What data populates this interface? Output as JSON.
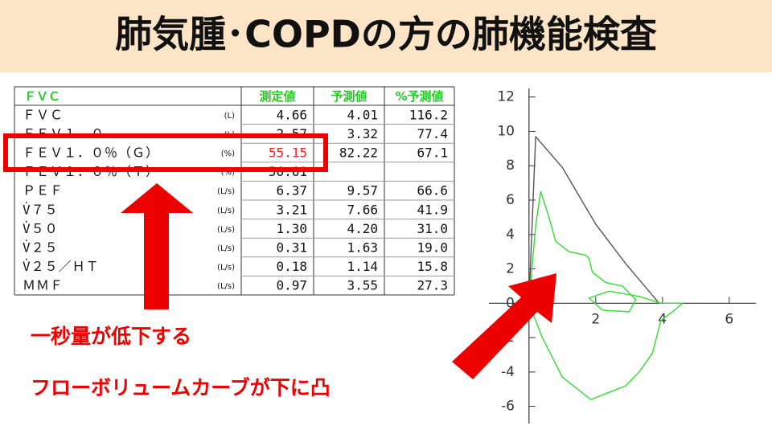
{
  "title": "肺気腫･COPDの方の肺機能検査",
  "table": {
    "header": [
      "ＦＶＣ",
      "測定値",
      "予測値",
      "%予測値"
    ],
    "rows": [
      {
        "label": "ＦＶＣ",
        "unit": "(L)",
        "measured": "4.66",
        "predicted": "4.01",
        "percent": "116.2"
      },
      {
        "label": "ＦＥＶ１．０",
        "unit": "(L)",
        "measured": "2.57",
        "predicted": "3.32",
        "percent": "77.4"
      },
      {
        "label": "ＦＥＶ１．０％（Ｇ）",
        "unit": "(%)",
        "measured": "55.15",
        "predicted": "82.22",
        "percent": "67.1"
      },
      {
        "label": "ＦＥＶ１．０％（Ｔ）",
        "unit": "(%)",
        "measured": "56.61"
      },
      {
        "label": "ＰＥＦ",
        "unit": "(L/s)",
        "measured": "6.37",
        "predicted": "9.57",
        "percent": "66.6"
      },
      {
        "label": "V̇７５",
        "unit": "(L/s)",
        "measured": "3.21",
        "predicted": "7.66",
        "percent": "41.9"
      },
      {
        "label": "V̇５０",
        "unit": "(L/s)",
        "measured": "1.30",
        "predicted": "4.20",
        "percent": "31.0"
      },
      {
        "label": "V̇２５",
        "unit": "(L/s)",
        "measured": "0.31",
        "predicted": "1.63",
        "percent": "19.0"
      },
      {
        "label": "V̇２５／ＨＴ",
        "unit": "(L/s)",
        "measured": "0.18",
        "predicted": "1.14",
        "percent": "15.8"
      },
      {
        "label": "ＭＭＦ",
        "unit": "(L/s)",
        "measured": "0.97",
        "predicted": "3.55",
        "percent": "27.3"
      }
    ]
  },
  "annotations": [
    "一秒量が低下する",
    "フローボリュームカーブが下に凸"
  ],
  "chart_data": {
    "type": "line",
    "xlim": [
      -1.2,
      6.8
    ],
    "ylim": [
      -7,
      12.5
    ],
    "xticks": [
      2,
      4,
      6
    ],
    "yticks": [
      12,
      10,
      8,
      6,
      4,
      2,
      0,
      -2,
      -4,
      -6
    ],
    "series": [
      {
        "color": "#555555",
        "x": [
          0,
          0.2,
          1.0,
          2.0,
          2.9,
          3.9
        ],
        "values": [
          0,
          9.7,
          7.9,
          4.6,
          2.3,
          0
        ]
      },
      {
        "color": "#33dd33",
        "x": [
          0,
          0.2,
          0.35,
          0.6,
          0.8,
          1.2,
          1.7,
          1.8,
          1.9,
          2.3,
          2.8,
          3.2,
          3.0,
          2.2,
          1.8,
          2.4,
          3.3,
          3.95,
          4.6,
          4.3,
          3.95,
          3.7,
          3.3,
          2.9,
          1.85,
          1.0,
          0.4,
          0
        ],
        "values": [
          0,
          4.5,
          6.5,
          5.0,
          3.6,
          3.0,
          2.8,
          2.6,
          1.8,
          1.2,
          1.0,
          0.2,
          -0.5,
          -0.4,
          0.3,
          0.7,
          0.4,
          0,
          0,
          -0.5,
          -1.0,
          -2.9,
          -4.0,
          -4.8,
          -5.6,
          -4.3,
          -2.0,
          0
        ]
      }
    ]
  }
}
